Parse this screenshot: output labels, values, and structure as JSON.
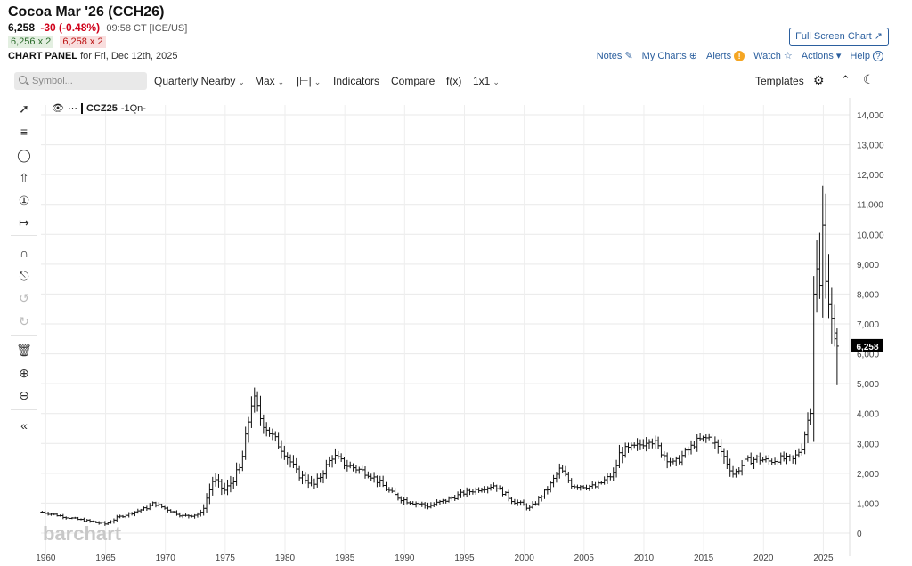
{
  "header": {
    "title": "Cocoa Mar '26 (CCH26)",
    "last": "6,258",
    "change": "-30 (-0.48%)",
    "time": "09:58 CT [ICE/US]",
    "bid": "6,256 x 2",
    "ask": "6,258 x 2",
    "panel_label": "CHART PANEL",
    "panel_date": "for Fri, Dec 12th, 2025",
    "fullscreen_label": "Full Screen Chart"
  },
  "links": {
    "notes": "Notes",
    "mycharts": "My Charts",
    "alerts": "Alerts",
    "watch": "Watch",
    "actions": "Actions",
    "help": "Help"
  },
  "toolbar": {
    "search_placeholder": "Symbol...",
    "aggregation": "Quarterly Nearby",
    "period": "Max",
    "indicators": "Indicators",
    "compare": "Compare",
    "fx": "f(x)",
    "layout": "1x1",
    "templates": "Templates"
  },
  "legend": {
    "symbol": "CCZ25",
    "suffix": "-1Qn-"
  },
  "watermark": "barchart",
  "colors": {
    "accent": "#2b5f9e",
    "down": "#d0021b",
    "price_tag": "#000000",
    "bars": "#111111"
  },
  "chart_data": {
    "type": "ohlc",
    "title": "",
    "xlabel": "",
    "ylabel": "",
    "ylim": [
      -300,
      14400
    ],
    "xlim": [
      1959.6,
      2027.2
    ],
    "x_ticks": [
      "1960",
      "1965",
      "1970",
      "1975",
      "1980",
      "1985",
      "1990",
      "1995",
      "2000",
      "2005",
      "2010",
      "2015",
      "2020",
      "2025"
    ],
    "y_ticks": [
      "0",
      "1,000",
      "2,000",
      "3,000",
      "4,000",
      "5,000",
      "6,000",
      "7,000",
      "8,000",
      "9,000",
      "10,000",
      "11,000",
      "12,000",
      "13,000",
      "14,000"
    ],
    "last_price_label": "6,258",
    "last_price": 6258,
    "grid": true,
    "anchors": [
      [
        1959.7,
        700,
        120,
        40
      ],
      [
        1962.5,
        470,
        110,
        35
      ],
      [
        1965.0,
        300,
        140,
        50
      ],
      [
        1966.0,
        520,
        130,
        35
      ],
      [
        1968.5,
        850,
        170,
        45
      ],
      [
        1969.0,
        1000,
        200,
        50
      ],
      [
        1971.5,
        560,
        150,
        40
      ],
      [
        1973.0,
        650,
        250,
        60
      ],
      [
        1974.0,
        1800,
        500,
        120
      ],
      [
        1975.0,
        1400,
        450,
        110
      ],
      [
        1976.3,
        2200,
        700,
        150
      ],
      [
        1977.3,
        4600,
        800,
        200
      ],
      [
        1978.0,
        3800,
        700,
        180
      ],
      [
        1979.0,
        3200,
        550,
        160
      ],
      [
        1980.0,
        2700,
        550,
        150
      ],
      [
        1981.0,
        2000,
        450,
        120
      ],
      [
        1982.5,
        1600,
        400,
        110
      ],
      [
        1984.0,
        2600,
        500,
        130
      ],
      [
        1985.0,
        2300,
        400,
        120
      ],
      [
        1987.0,
        2000,
        350,
        110
      ],
      [
        1989.0,
        1300,
        300,
        90
      ],
      [
        1990.0,
        1100,
        280,
        80
      ],
      [
        1992.0,
        900,
        250,
        70
      ],
      [
        1993.5,
        1100,
        250,
        70
      ],
      [
        1995.0,
        1350,
        250,
        70
      ],
      [
        1997.5,
        1600,
        250,
        70
      ],
      [
        1999.0,
        1100,
        260,
        80
      ],
      [
        2000.5,
        820,
        200,
        60
      ],
      [
        2002.0,
        1500,
        300,
        90
      ],
      [
        2003.0,
        2150,
        350,
        110
      ],
      [
        2004.0,
        1600,
        300,
        90
      ],
      [
        2006.0,
        1550,
        250,
        80
      ],
      [
        2007.5,
        2000,
        350,
        100
      ],
      [
        2008.0,
        2700,
        550,
        150
      ],
      [
        2009.5,
        2900,
        450,
        130
      ],
      [
        2010.5,
        3200,
        500,
        150
      ],
      [
        2011.5,
        2700,
        500,
        140
      ],
      [
        2012.5,
        2300,
        400,
        120
      ],
      [
        2013.5,
        2700,
        400,
        120
      ],
      [
        2014.5,
        3100,
        350,
        110
      ],
      [
        2015.5,
        3200,
        400,
        120
      ],
      [
        2016.5,
        2700,
        600,
        150
      ],
      [
        2017.5,
        1950,
        350,
        100
      ],
      [
        2018.5,
        2400,
        400,
        110
      ],
      [
        2019.5,
        2500,
        400,
        110
      ],
      [
        2020.5,
        2400,
        350,
        100
      ],
      [
        2021.5,
        2500,
        350,
        100
      ],
      [
        2022.5,
        2450,
        350,
        100
      ],
      [
        2023.2,
        2900,
        450,
        140
      ],
      [
        2023.6,
        3600,
        600,
        180
      ],
      [
        2023.95,
        4200,
        500,
        200
      ],
      [
        2024.15,
        8000,
        3000,
        400
      ],
      [
        2024.4,
        9000,
        3000,
        400
      ],
      [
        2024.65,
        7600,
        2400,
        400
      ],
      [
        2024.9,
        10500,
        3000,
        400
      ],
      [
        2025.15,
        9000,
        3000,
        400
      ],
      [
        2025.4,
        8000,
        2500,
        400
      ],
      [
        2025.65,
        7200,
        1800,
        400
      ],
      [
        2025.9,
        6200,
        1500,
        400
      ]
    ]
  }
}
